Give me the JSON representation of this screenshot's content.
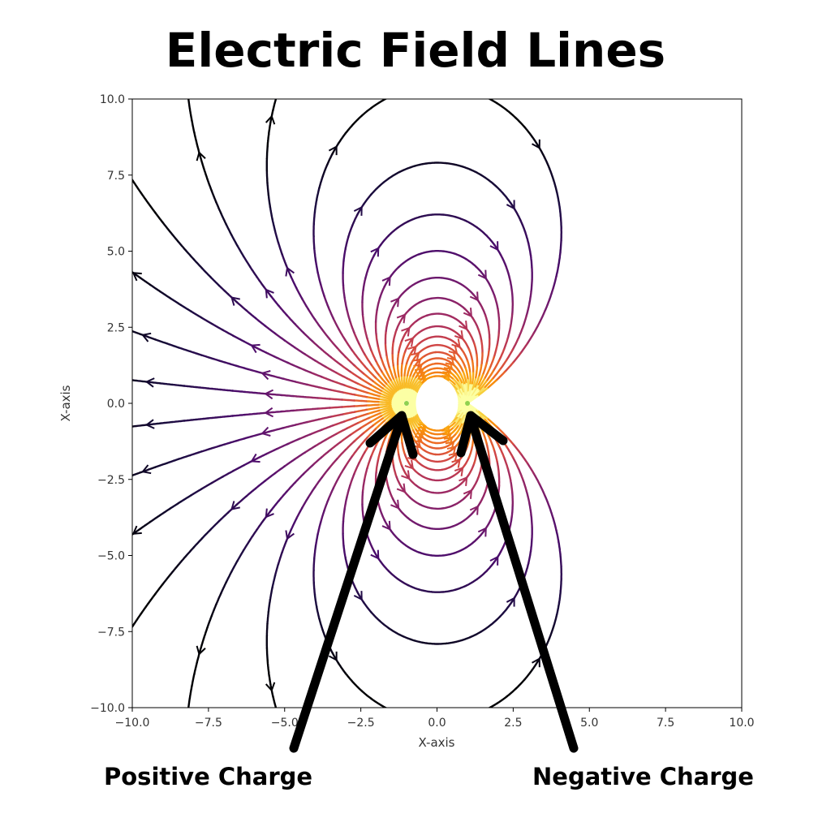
{
  "title": "Electric Field Lines",
  "annotations": {
    "positive": "Positive Charge",
    "negative": "Negative Charge"
  },
  "colors": {
    "colormap": [
      "#000004",
      "#1b0c41",
      "#4a0c6b",
      "#781c6d",
      "#a52c60",
      "#cf4446",
      "#ed6925",
      "#fb9b06",
      "#f7d13d",
      "#fcffa4"
    ],
    "arrow": "#000000"
  },
  "chart_data": {
    "type": "streamplot",
    "title": "",
    "xlabel": "X-axis",
    "ylabel": "X-axis",
    "xlim": [
      -10,
      10
    ],
    "ylim": [
      -10,
      10
    ],
    "xticks": [
      "−10.0",
      "−7.5",
      "−5.0",
      "−2.5",
      "0.0",
      "2.5",
      "5.0",
      "7.5",
      "10.0"
    ],
    "yticks": [
      "−10.0",
      "−7.5",
      "−5.0",
      "−2.5",
      "0.0",
      "2.5",
      "5.0",
      "7.5",
      "10.0"
    ],
    "tick_values": [
      -10,
      -7.5,
      -5,
      -2.5,
      0,
      2.5,
      5,
      7.5,
      10
    ],
    "charges": [
      {
        "label": "Positive Charge",
        "x": -1,
        "y": 0,
        "q": 1
      },
      {
        "label": "Negative Charge",
        "x": 1,
        "y": 0,
        "q": -1
      }
    ],
    "colormap_name": "inferno",
    "grid": false
  }
}
